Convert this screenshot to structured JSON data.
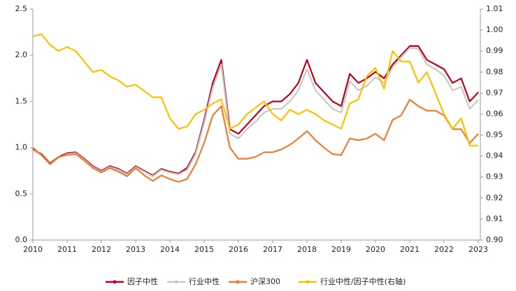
{
  "chart_data": {
    "type": "line",
    "x": [
      2010,
      2010.25,
      2010.5,
      2010.75,
      2011,
      2011.25,
      2011.5,
      2011.75,
      2012,
      2012.25,
      2012.5,
      2012.75,
      2013,
      2013.25,
      2013.5,
      2013.75,
      2014,
      2014.25,
      2014.5,
      2014.75,
      2015,
      2015.25,
      2015.5,
      2015.75,
      2016,
      2016.25,
      2016.5,
      2016.75,
      2017,
      2017.25,
      2017.5,
      2017.75,
      2018,
      2018.25,
      2018.5,
      2018.75,
      2019,
      2019.25,
      2019.5,
      2019.75,
      2020,
      2020.25,
      2020.5,
      2020.75,
      2021,
      2021.25,
      2021.5,
      2021.75,
      2022,
      2022.25,
      2022.5,
      2022.75,
      2023
    ],
    "xlim": [
      2010,
      2023.06
    ],
    "xticks": [
      2010,
      2011,
      2012,
      2013,
      2014,
      2015,
      2016,
      2017,
      2018,
      2019,
      2020,
      2021,
      2022,
      2023
    ],
    "ylim": [
      0,
      2.5
    ],
    "yticks": [
      {
        "value": 0,
        "label": "0.0"
      },
      0.5,
      {
        "value": 1,
        "label": "1.0"
      },
      1.5,
      {
        "value": 2,
        "label": "2.0"
      },
      2.5
    ],
    "y2lim": [
      0.9,
      1.01
    ],
    "y2ticks": [
      {
        "value": 0.9,
        "label": "0.90"
      },
      0.91,
      0.92,
      0.93,
      0.94,
      0.95,
      0.96,
      0.97,
      0.98,
      0.99,
      {
        "value": 1,
        "label": "1.00"
      },
      1.01
    ],
    "legend": "bottom",
    "series": [
      {
        "name": "因子中性",
        "color": "#c0001a",
        "values": [
          0.98,
          0.93,
          0.83,
          0.9,
          0.94,
          0.95,
          0.88,
          0.8,
          0.75,
          0.8,
          0.77,
          0.72,
          0.8,
          0.75,
          0.7,
          0.77,
          0.74,
          0.72,
          0.78,
          0.95,
          1.3,
          1.7,
          1.95,
          1.2,
          1.15,
          1.25,
          1.35,
          1.45,
          1.5,
          1.5,
          1.58,
          1.7,
          1.95,
          1.7,
          1.6,
          1.5,
          1.45,
          1.8,
          1.7,
          1.75,
          1.82,
          1.75,
          1.9,
          2.0,
          2.1,
          2.1,
          1.95,
          1.9,
          1.85,
          1.7,
          1.75,
          1.5,
          1.6
        ]
      },
      {
        "name": "行业中性",
        "color": "#c8c8c8",
        "values": [
          0.97,
          0.92,
          0.82,
          0.89,
          0.93,
          0.94,
          0.87,
          0.79,
          0.74,
          0.79,
          0.76,
          0.71,
          0.79,
          0.74,
          0.69,
          0.76,
          0.73,
          0.71,
          0.76,
          0.93,
          1.27,
          1.65,
          1.9,
          1.15,
          1.1,
          1.2,
          1.28,
          1.38,
          1.42,
          1.42,
          1.5,
          1.62,
          1.85,
          1.62,
          1.52,
          1.42,
          1.38,
          1.72,
          1.62,
          1.67,
          1.76,
          1.7,
          1.87,
          1.98,
          2.08,
          2.07,
          1.9,
          1.85,
          1.78,
          1.62,
          1.66,
          1.42,
          1.52
        ]
      },
      {
        "name": "沪深300",
        "color": "#ed7d31",
        "values": [
          1.0,
          0.92,
          0.82,
          0.9,
          0.92,
          0.93,
          0.86,
          0.78,
          0.73,
          0.78,
          0.74,
          0.69,
          0.78,
          0.7,
          0.64,
          0.7,
          0.66,
          0.63,
          0.66,
          0.82,
          1.05,
          1.35,
          1.45,
          1.0,
          0.88,
          0.88,
          0.9,
          0.95,
          0.95,
          0.98,
          1.03,
          1.1,
          1.18,
          1.08,
          1.0,
          0.93,
          0.92,
          1.1,
          1.08,
          1.1,
          1.15,
          1.08,
          1.3,
          1.35,
          1.52,
          1.45,
          1.4,
          1.4,
          1.35,
          1.2,
          1.2,
          1.05,
          1.15
        ]
      },
      {
        "name": "行业中性/因子中性(右轴)",
        "color": "#ffc000",
        "axis": "y2",
        "values": [
          0.997,
          0.998,
          0.993,
          0.99,
          0.992,
          0.99,
          0.985,
          0.98,
          0.981,
          0.978,
          0.976,
          0.973,
          0.974,
          0.971,
          0.968,
          0.968,
          0.958,
          0.953,
          0.954,
          0.96,
          0.962,
          0.965,
          0.967,
          0.953,
          0.955,
          0.96,
          0.963,
          0.966,
          0.96,
          0.957,
          0.962,
          0.96,
          0.962,
          0.96,
          0.957,
          0.955,
          0.953,
          0.965,
          0.967,
          0.978,
          0.982,
          0.972,
          0.99,
          0.985,
          0.985,
          0.975,
          0.98,
          0.97,
          0.96,
          0.953,
          0.958,
          0.945,
          0.945
        ]
      }
    ]
  }
}
